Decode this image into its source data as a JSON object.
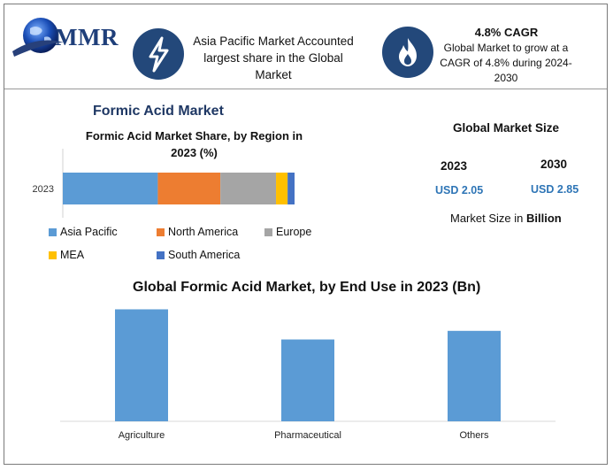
{
  "logo": {
    "text": "MMR"
  },
  "info_left": {
    "icon": "lightning-icon",
    "text": "Asia Pacific Market Accounted largest share in the Global Market"
  },
  "info_right": {
    "icon": "flame-icon",
    "title": "4.8% CAGR",
    "text": "Global Market to grow at a CAGR of 4.8% during 2024-2030"
  },
  "colors": {
    "accent": "#23487a",
    "asia_pacific": "#5b9bd5",
    "north_america": "#ed7d31",
    "europe": "#a5a5a5",
    "mea": "#ffc000",
    "south_america": "#4472c4",
    "usd": "#2e75b6"
  },
  "market_title": "Formic Acid  Market",
  "global_market_size": {
    "title": "Global Market Size",
    "year1": "2023",
    "value1": "USD 2.05",
    "year2": "2030",
    "value2": "USD 2.85",
    "note_prefix": "Market Size in ",
    "note_bold": "Billion"
  },
  "chart_data": [
    {
      "type": "bar",
      "orientation": "horizontal",
      "stacked": true,
      "title": "Formic Acid  Market Share, by Region in 2023 (%)",
      "categories": [
        "2023"
      ],
      "series": [
        {
          "name": "Asia Pacific",
          "values": [
            41
          ]
        },
        {
          "name": "North America",
          "values": [
            27
          ]
        },
        {
          "name": "Europe",
          "values": [
            24
          ]
        },
        {
          "name": "MEA",
          "values": [
            5
          ]
        },
        {
          "name": "South America",
          "values": [
            3
          ]
        }
      ],
      "xlim": [
        0,
        100
      ],
      "legend": "bottom"
    },
    {
      "type": "bar",
      "title": "Global Formic Acid  Market, by End Use in 2023 (Bn)",
      "categories": [
        "Agriculture",
        "Pharmaceutical",
        "Others"
      ],
      "values": [
        0.78,
        0.57,
        0.63
      ],
      "grid": false
    }
  ]
}
